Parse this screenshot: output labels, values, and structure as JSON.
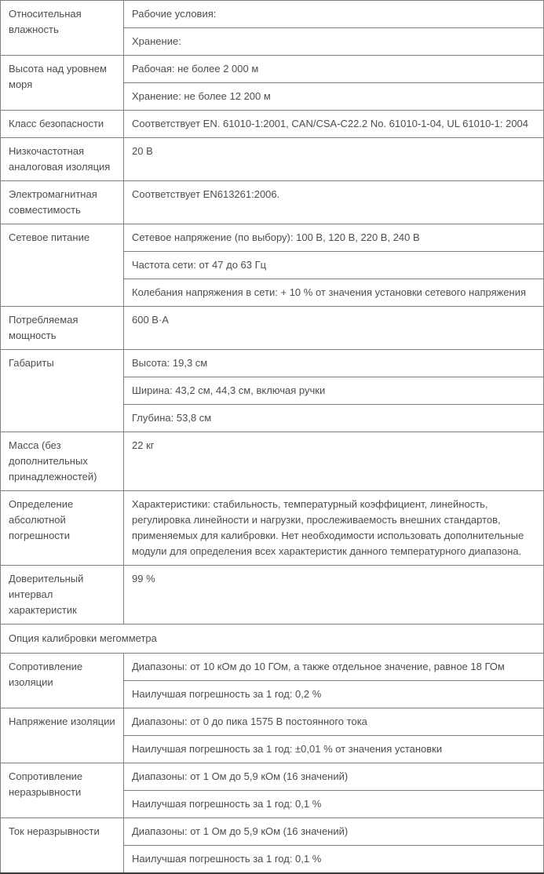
{
  "colors": {
    "text": "#4d4d4d",
    "border": "#7f7f7f",
    "bottom_border": "#3d3d3d",
    "background": "#ffffff"
  },
  "table": {
    "groups": [
      {
        "label": "Относительная влажность",
        "values": [
          "Рабочие условия:",
          "Хранение:"
        ]
      },
      {
        "label": "Высота над уровнем моря",
        "values": [
          "Рабочая: не более 2 000 м",
          "Хранение: не более 12 200 м"
        ]
      },
      {
        "label": "Класс безопасности",
        "values": [
          "Соответствует EN. 61010-1:2001, CAN/CSA-C22.2 No. 61010-1-04, UL 61010-1: 2004"
        ]
      },
      {
        "label": "Низкочастотная аналоговая изоляция",
        "values": [
          "20 В"
        ]
      },
      {
        "label": "Электромагнитная совместимость",
        "values": [
          "Соответствует EN613261:2006."
        ]
      },
      {
        "label": "Сетевое питание",
        "values": [
          "Сетевое напряжение (по выбору): 100 В, 120 В, 220 В, 240 В",
          "Частота сети: от 47 до 63 Гц",
          "Колебания напряжения в сети: + 10 % от значения установки сетевого напряжения"
        ]
      },
      {
        "label": "Потребляемая мощность",
        "values": [
          "600 В·А"
        ]
      },
      {
        "label": "Габариты",
        "values": [
          "Высота: 19,3 см",
          "Ширина: 43,2 см, 44,3 см, включая ручки",
          "Глубина: 53,8 см"
        ]
      },
      {
        "label": "Масса (без дополнительных принадлежностей)",
        "values": [
          "22 кг"
        ]
      },
      {
        "label": "Определение абсолютной погрешности",
        "values": [
          "Характеристики: стабильность, температурный коэффициент, линейность, регулировка линейности и нагрузки, прослеживаемость внешних стандартов, применяемых для калибровки. Нет необходимости использовать дополнительные модули для определения всех характеристик данного температурного диапазона."
        ]
      },
      {
        "label": "Доверительный интервал характеристик",
        "values": [
          "99 %"
        ]
      },
      {
        "section": true,
        "label": "Опция калибровки мегомметра"
      },
      {
        "label": "Сопротивление изоляции",
        "values": [
          "Диапазоны: от 10 кОм до 10 ГОм, а также отдельное значение, равное 18 ГОм",
          "Наилучшая погрешность за 1 год: 0,2 %"
        ]
      },
      {
        "label": "Напряжение изоляции",
        "values": [
          "Диапазоны: от 0 до пика 1575 В постоянного тока",
          "Наилучшая погрешность за 1 год: ±0,01 % от значения установки"
        ]
      },
      {
        "label": "Сопротивление неразрывности",
        "values": [
          "Диапазоны: от 1 Ом до 5,9 кОм (16 значений)",
          "Наилучшая погрешность за 1 год: 0,1 %"
        ]
      },
      {
        "label": "Ток неразрывности",
        "values": [
          "Диапазоны: от 1 Ом до 5,9 кОм (16 значений)",
          "Наилучшая погрешность за 1 год: 0,1 %"
        ]
      }
    ]
  }
}
